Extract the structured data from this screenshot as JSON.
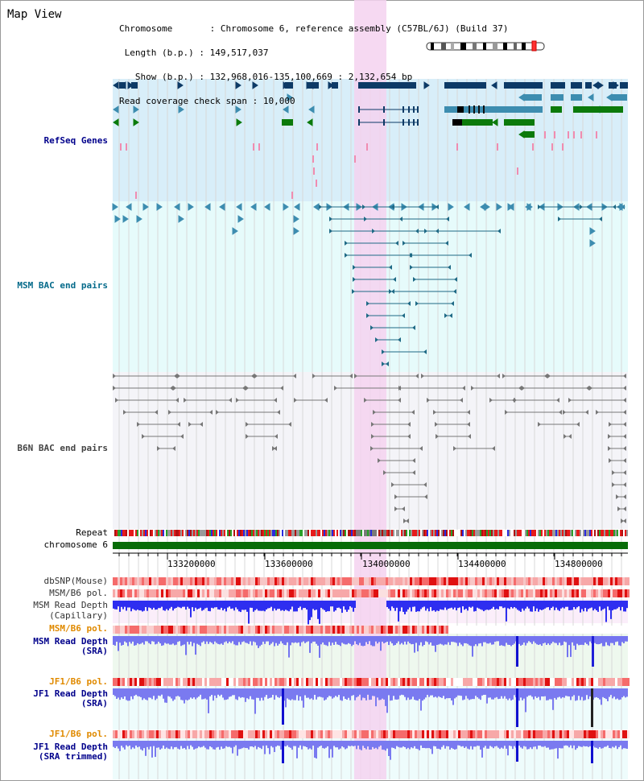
{
  "title": "Map View",
  "info": {
    "chromosome_key": "Chromosome",
    "chromosome_value": "Chromosome 6, reference assembly (C57BL/6J) (Build 37)",
    "length_key": "Length (b.p.)",
    "length_value": "149,517,037",
    "show_key": "Show (b.p.)",
    "show_value": "132,968,016-135,100,669 : 2,132,654 bp",
    "span_key": "Read coverage check span",
    "span_value": "10,000"
  },
  "tracks": {
    "refseq": "RefSeq Genes",
    "msm_bac": "MSM BAC end pairs",
    "b6n_bac": "B6N BAC end pairs",
    "repeat": "Repeat",
    "chromosome": "chromosome 6",
    "dbsnp": "dbSNP(Mouse)",
    "msm_b6_pol": "MSM/B6 pol.",
    "msm_depth_cap_1": "MSM Read Depth",
    "msm_depth_cap_2": "(Capillary)",
    "msm_b6_pol_2": "MSM/B6 pol.",
    "msm_depth_sra_1": "MSM Read Depth",
    "msm_depth_sra_2": "(SRA)",
    "jf1_b6_pol": "JF1/B6 pol.",
    "jf1_depth_sra_1": "JF1 Read Depth",
    "jf1_depth_sra_2": "(SRA)",
    "jf1_b6_pol_2": "JF1/B6 pol.",
    "jf1_depth_trim_1": "JF1 Read Depth",
    "jf1_depth_trim_2": "(SRA trimmed)"
  },
  "axis": {
    "ticks": [
      "133200000",
      "133600000",
      "134000000",
      "134400000",
      "134800000"
    ]
  },
  "colors": {
    "gene_dark": "#0d3a66",
    "gene_mid": "#3d8db0",
    "gene_green": "#0b7a0b",
    "refseq_bg": "#d8eef9",
    "msm_bg": "#e6fbfb",
    "b6n_bg": "#f4f4f8",
    "highlight": "#f4d2f0",
    "depth_blue": "#2e2ef0",
    "label_blue": "#00008b",
    "label_teal": "#046a8a",
    "label_orange": "#e08a00"
  }
}
